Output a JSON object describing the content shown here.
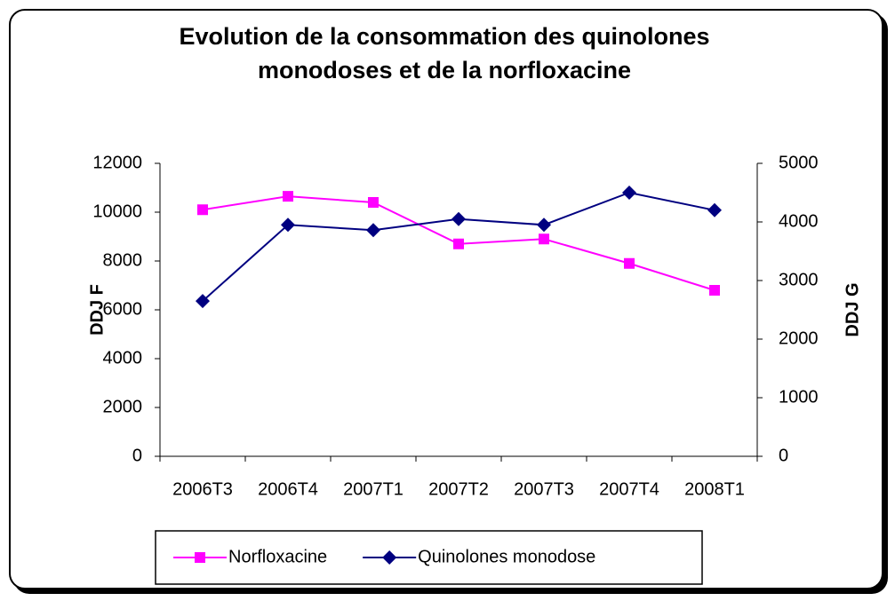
{
  "chart_data": {
    "type": "line",
    "title": "Evolution de la consommation des quinolones monodoses et de la norfloxacine",
    "categories": [
      "2006T3",
      "2006T4",
      "2007T1",
      "2007T2",
      "2007T3",
      "2007T4",
      "2008T1"
    ],
    "y_label": "DDJ F",
    "y2_label": "DDJ G",
    "ylim": [
      0,
      12000
    ],
    "yticks": [
      0,
      2000,
      4000,
      6000,
      8000,
      10000,
      12000
    ],
    "y2lim": [
      0,
      5000
    ],
    "y2ticks": [
      0,
      1000,
      2000,
      3000,
      4000,
      5000
    ],
    "legend": "bottom",
    "series": [
      {
        "name": "Norfloxacine",
        "color": "#ff00ff",
        "marker": "square",
        "values": [
          10100,
          10650,
          10400,
          8700,
          8900,
          7900,
          6800
        ]
      },
      {
        "name": "Quinolones monodose",
        "color": "#000080",
        "marker": "diamond",
        "axis": "y2",
        "values": [
          2650,
          3950,
          3860,
          4050,
          3950,
          4500,
          4200
        ]
      }
    ]
  }
}
